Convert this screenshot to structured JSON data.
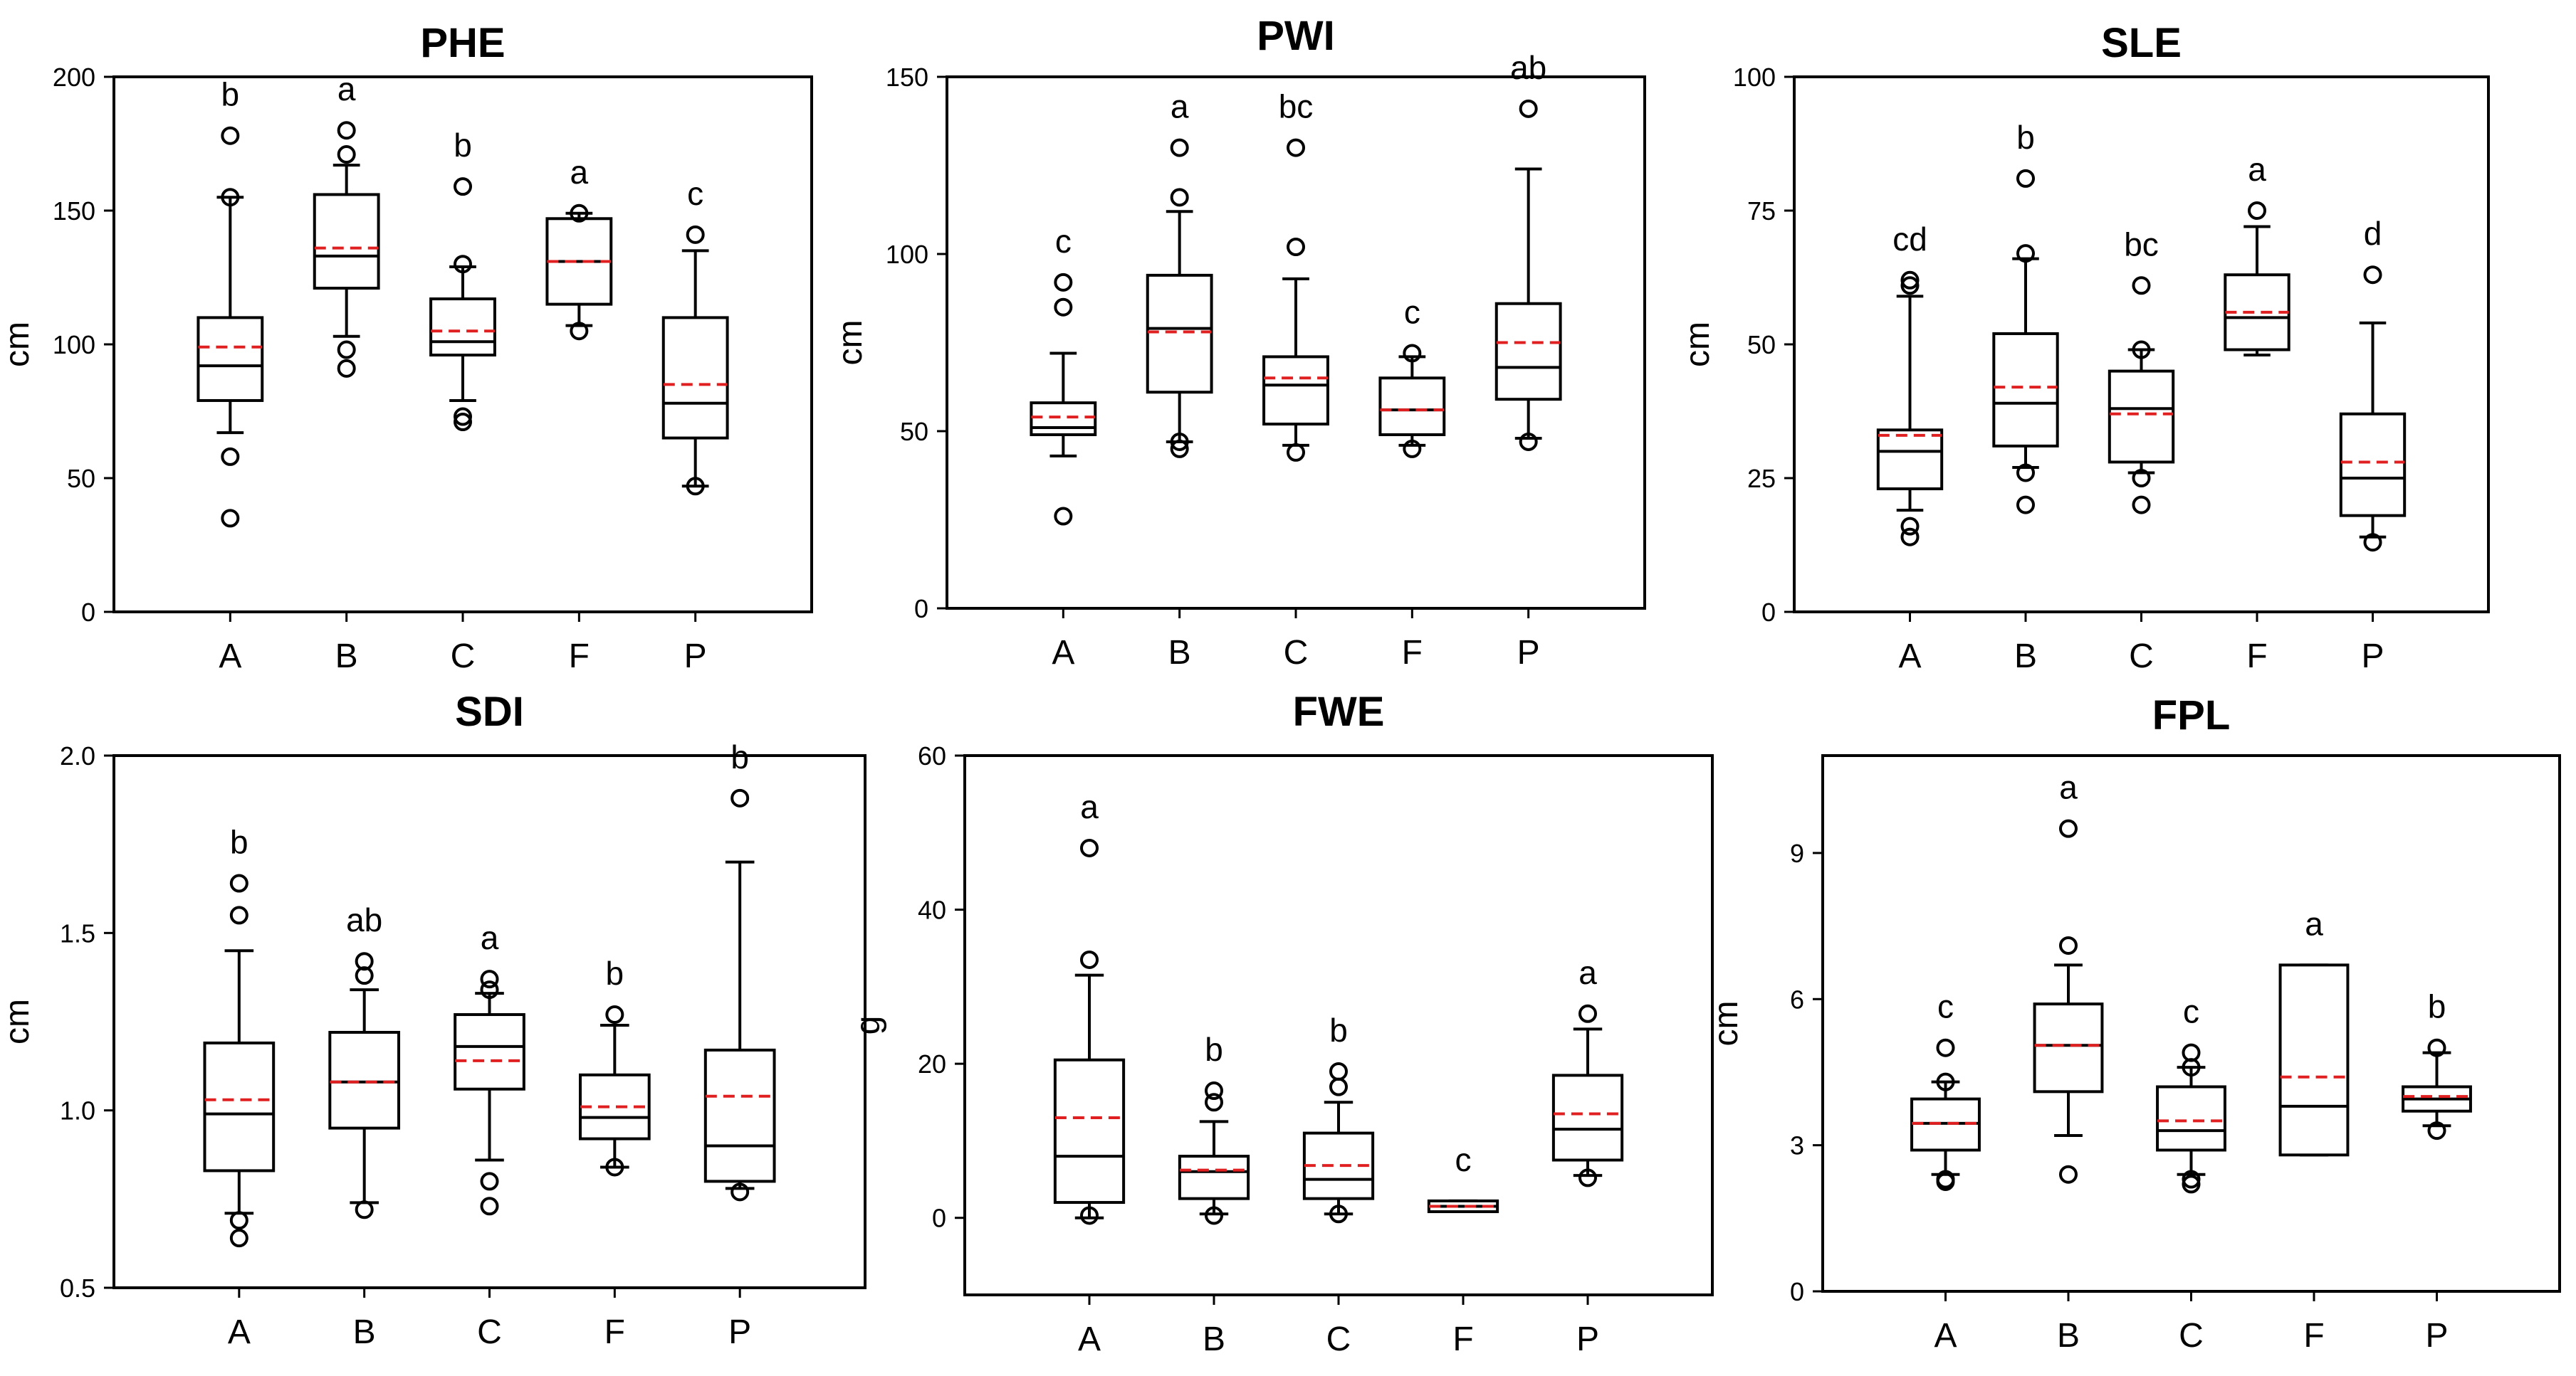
{
  "style": {
    "mean_line_color": "#e02020",
    "median_line_color": "#000000",
    "box_color": "#000000"
  },
  "chart_data": [
    {
      "type": "box",
      "title": "PHE",
      "ylabel": "cm",
      "ylim": [
        0,
        200
      ],
      "yticks": [
        0,
        50,
        100,
        150,
        200
      ],
      "ytick_labels": [
        "0",
        "50",
        "100",
        "150",
        "200"
      ],
      "categories": [
        "A",
        "B",
        "C",
        "F",
        "P"
      ],
      "boxes": [
        {
          "whisker_low": 67,
          "q1": 79,
          "median": 92,
          "mean": 99,
          "q3": 110,
          "whisker_high": 155,
          "outliers": [
            178,
            155,
            58,
            35
          ],
          "letter": "b"
        },
        {
          "whisker_low": 103,
          "q1": 121,
          "median": 133,
          "mean": 136,
          "q3": 156,
          "whisker_high": 167,
          "outliers": [
            180,
            171,
            98,
            91
          ],
          "letter": "a"
        },
        {
          "whisker_low": 79,
          "q1": 96,
          "median": 101,
          "mean": 105,
          "q3": 117,
          "whisker_high": 129,
          "outliers": [
            159,
            130,
            73,
            71
          ],
          "letter": "b"
        },
        {
          "whisker_low": 107,
          "q1": 115,
          "median": 131,
          "mean": 131,
          "q3": 147,
          "whisker_high": 149,
          "outliers": [
            149,
            105
          ],
          "letter": "a"
        },
        {
          "whisker_low": 47,
          "q1": 65,
          "median": 78,
          "mean": 85,
          "q3": 110,
          "whisker_high": 135,
          "outliers": [
            141,
            47
          ],
          "letter": "c"
        }
      ]
    },
    {
      "type": "box",
      "title": "PWI",
      "ylabel": "cm",
      "ylim": [
        0,
        150
      ],
      "yticks": [
        0,
        50,
        100,
        150
      ],
      "ytick_labels": [
        "0",
        "50",
        "100",
        "150"
      ],
      "categories": [
        "A",
        "B",
        "C",
        "F",
        "P"
      ],
      "boxes": [
        {
          "whisker_low": 43,
          "q1": 49,
          "median": 51,
          "mean": 54,
          "q3": 58,
          "whisker_high": 72,
          "outliers": [
            92,
            85,
            26
          ],
          "letter": "c"
        },
        {
          "whisker_low": 47,
          "q1": 61,
          "median": 79,
          "mean": 78,
          "q3": 94,
          "whisker_high": 112,
          "outliers": [
            130,
            116,
            47,
            45
          ],
          "letter": "a"
        },
        {
          "whisker_low": 46,
          "q1": 52,
          "median": 63,
          "mean": 65,
          "q3": 71,
          "whisker_high": 93,
          "outliers": [
            130,
            102,
            44
          ],
          "letter": "bc"
        },
        {
          "whisker_low": 46,
          "q1": 49,
          "median": 56,
          "mean": 56,
          "q3": 65,
          "whisker_high": 71,
          "outliers": [
            72,
            45
          ],
          "letter": "c"
        },
        {
          "whisker_low": 48,
          "q1": 59,
          "median": 68,
          "mean": 75,
          "q3": 86,
          "whisker_high": 124,
          "outliers": [
            141,
            47
          ],
          "letter": "ab"
        }
      ]
    },
    {
      "type": "box",
      "title": "SLE",
      "ylabel": "cm",
      "ylim": [
        0,
        100
      ],
      "yticks": [
        0,
        25,
        50,
        75,
        100
      ],
      "ytick_labels": [
        "0",
        "25",
        "50",
        "75",
        "100"
      ],
      "categories": [
        "A",
        "B",
        "C",
        "F",
        "P"
      ],
      "boxes": [
        {
          "whisker_low": 19,
          "q1": 23,
          "median": 30,
          "mean": 33,
          "q3": 34,
          "whisker_high": 59,
          "outliers": [
            62,
            61,
            16,
            14
          ],
          "letter": "cd"
        },
        {
          "whisker_low": 27,
          "q1": 31,
          "median": 39,
          "mean": 42,
          "q3": 52,
          "whisker_high": 66,
          "outliers": [
            81,
            67,
            26,
            20
          ],
          "letter": "b"
        },
        {
          "whisker_low": 26,
          "q1": 28,
          "median": 38,
          "mean": 37,
          "q3": 45,
          "whisker_high": 49,
          "outliers": [
            61,
            49,
            25,
            20
          ],
          "letter": "bc"
        },
        {
          "whisker_low": 48,
          "q1": 49,
          "median": 55,
          "mean": 56,
          "q3": 63,
          "whisker_high": 72,
          "outliers": [
            75
          ],
          "letter": "a"
        },
        {
          "whisker_low": 14,
          "q1": 18,
          "median": 25,
          "mean": 28,
          "q3": 37,
          "whisker_high": 54,
          "outliers": [
            63,
            13
          ],
          "letter": "d"
        }
      ]
    },
    {
      "type": "box",
      "title": "SDI",
      "ylabel": "cm",
      "ylim": [
        0.5,
        2.0
      ],
      "yticks": [
        0.5,
        1.0,
        1.5,
        2.0
      ],
      "ytick_labels": [
        "0.5",
        "1.0",
        "1.5",
        "2.0"
      ],
      "categories": [
        "A",
        "B",
        "C",
        "F",
        "P"
      ],
      "boxes": [
        {
          "whisker_low": 0.71,
          "q1": 0.83,
          "median": 0.99,
          "mean": 1.03,
          "q3": 1.19,
          "whisker_high": 1.45,
          "outliers": [
            1.64,
            1.55,
            0.69,
            0.64
          ],
          "letter": "b"
        },
        {
          "whisker_low": 0.74,
          "q1": 0.95,
          "median": 1.08,
          "mean": 1.08,
          "q3": 1.22,
          "whisker_high": 1.34,
          "outliers": [
            1.42,
            1.38,
            0.72
          ],
          "letter": "ab"
        },
        {
          "whisker_low": 0.86,
          "q1": 1.06,
          "median": 1.18,
          "mean": 1.14,
          "q3": 1.27,
          "whisker_high": 1.33,
          "outliers": [
            1.37,
            1.34,
            0.8,
            0.73
          ],
          "letter": "a"
        },
        {
          "whisker_low": 0.84,
          "q1": 0.92,
          "median": 0.98,
          "mean": 1.01,
          "q3": 1.1,
          "whisker_high": 1.24,
          "outliers": [
            1.27,
            0.84
          ],
          "letter": "b"
        },
        {
          "whisker_low": 0.78,
          "q1": 0.8,
          "median": 0.9,
          "mean": 1.04,
          "q3": 1.17,
          "whisker_high": 1.7,
          "outliers": [
            1.88,
            0.77
          ],
          "letter": "b"
        }
      ]
    },
    {
      "type": "box",
      "title": "FWE",
      "ylabel": "g",
      "ylim": [
        -10,
        60
      ],
      "yticks": [
        0,
        20,
        40,
        60
      ],
      "ytick_labels": [
        "0",
        "20",
        "40",
        "60"
      ],
      "categories": [
        "A",
        "B",
        "C",
        "F",
        "P"
      ],
      "boxes": [
        {
          "whisker_low": 0,
          "q1": 2,
          "median": 8,
          "mean": 13,
          "q3": 20.5,
          "whisker_high": 31.5,
          "outliers": [
            48,
            33.5,
            0.3
          ],
          "letter": "a"
        },
        {
          "whisker_low": 0.5,
          "q1": 2.5,
          "median": 6,
          "mean": 6.2,
          "q3": 8,
          "whisker_high": 12.5,
          "outliers": [
            16.5,
            15,
            0.3
          ],
          "letter": "b"
        },
        {
          "whisker_low": 0.5,
          "q1": 2.5,
          "median": 5,
          "mean": 6.8,
          "q3": 11,
          "whisker_high": 15,
          "outliers": [
            19,
            17,
            0.5
          ],
          "letter": "b"
        },
        {
          "whisker_low": 0.8,
          "q1": 0.8,
          "median": 1.5,
          "mean": 1.5,
          "q3": 2.2,
          "whisker_high": 2.2,
          "outliers": [],
          "letter": "c"
        },
        {
          "whisker_low": 5.5,
          "q1": 7.5,
          "median": 11.5,
          "mean": 13.5,
          "q3": 18.5,
          "whisker_high": 24.5,
          "outliers": [
            26.5,
            5.2
          ],
          "letter": "a"
        }
      ]
    },
    {
      "type": "box",
      "title": "FPL",
      "ylabel": "cm",
      "ylim": [
        0,
        11
      ],
      "yticks": [
        0,
        3,
        6,
        9
      ],
      "ytick_labels": [
        "0",
        "3",
        "6",
        "9"
      ],
      "categories": [
        "A",
        "B",
        "C",
        "F",
        "P"
      ],
      "boxes": [
        {
          "whisker_low": 2.4,
          "q1": 2.9,
          "median": 3.45,
          "mean": 3.45,
          "q3": 3.95,
          "whisker_high": 4.3,
          "outliers": [
            5,
            4.3,
            2.3,
            2.25
          ],
          "letter": "c"
        },
        {
          "whisker_low": 3.2,
          "q1": 4.1,
          "median": 5.05,
          "mean": 5.05,
          "q3": 5.9,
          "whisker_high": 6.7,
          "outliers": [
            9.5,
            7.1,
            2.4
          ],
          "letter": "a"
        },
        {
          "whisker_low": 2.4,
          "q1": 2.9,
          "median": 3.3,
          "mean": 3.5,
          "q3": 4.2,
          "whisker_high": 4.6,
          "outliers": [
            4.9,
            4.6,
            2.3,
            2.2
          ],
          "letter": "c"
        },
        {
          "whisker_low": 2.8,
          "q1": 2.8,
          "median": 3.8,
          "mean": 4.4,
          "q3": 6.7,
          "whisker_high": 6.7,
          "outliers": [],
          "letter": "a"
        },
        {
          "whisker_low": 3.4,
          "q1": 3.7,
          "median": 3.95,
          "mean": 4.0,
          "q3": 4.2,
          "whisker_high": 4.9,
          "outliers": [
            5,
            3.3
          ],
          "letter": "b"
        }
      ]
    }
  ]
}
